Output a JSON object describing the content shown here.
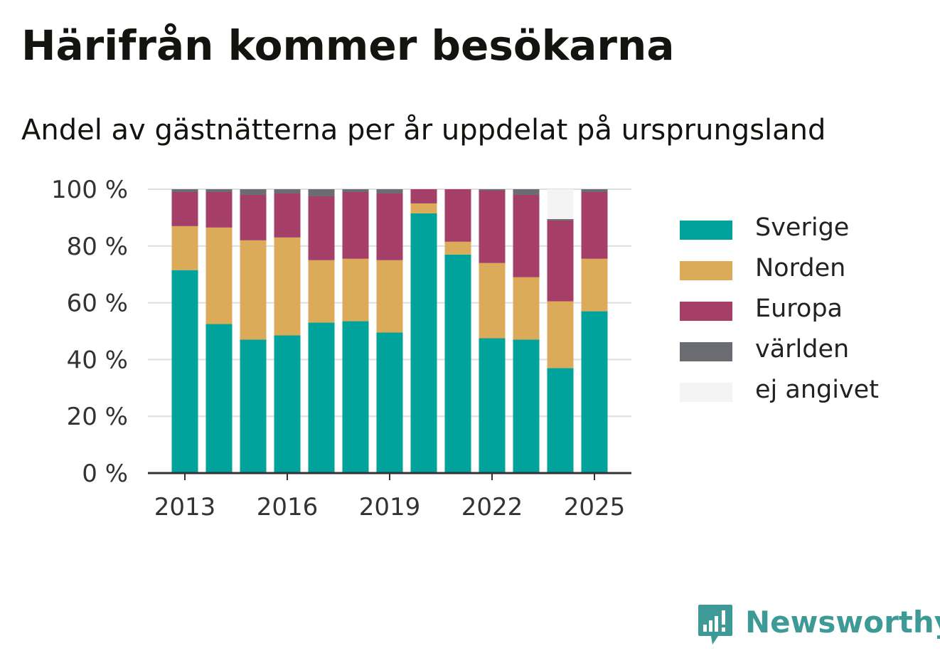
{
  "header": {
    "title": "Härifrån kommer besökarna",
    "subtitle": "Andel av gästnätterna per år uppdelat på ursprungsland"
  },
  "brand": {
    "name": "Newsworthy",
    "icon": "newsworthy-logo-icon",
    "color": "#3d9a96"
  },
  "legend": {
    "placement": "right",
    "items": [
      {
        "label": "Sverige",
        "color": "#00a39b"
      },
      {
        "label": "Norden",
        "color": "#dcab59"
      },
      {
        "label": "Europa",
        "color": "#a53f67"
      },
      {
        "label": "världen",
        "color": "#6b6b72"
      },
      {
        "label": "ej angivet",
        "color": "#f4f4f4"
      }
    ]
  },
  "chart_data": {
    "type": "bar",
    "stacked": true,
    "x": [
      2013,
      2014,
      2015,
      2016,
      2017,
      2018,
      2019,
      2020,
      2021,
      2022,
      2023,
      2024,
      2025
    ],
    "x_tick_labels": [
      "2013",
      "2016",
      "2019",
      "2022",
      "2025"
    ],
    "y_tick_labels": [
      "0 %",
      "20 %",
      "40 %",
      "60 %",
      "80 %",
      "100 %"
    ],
    "ylim": [
      0,
      100
    ],
    "grid": true,
    "series": [
      {
        "name": "Sverige",
        "color": "#00a39b",
        "values": [
          71.5,
          52.5,
          47,
          48.5,
          53,
          53.5,
          49.5,
          91.5,
          77,
          47.5,
          47,
          37,
          57
        ]
      },
      {
        "name": "Norden",
        "color": "#dcab59",
        "values": [
          15.5,
          34,
          35,
          34.5,
          22,
          22,
          25.5,
          3.5,
          4.5,
          26.5,
          22,
          23.5,
          18.5
        ]
      },
      {
        "name": "Europa",
        "color": "#a53f67",
        "values": [
          12,
          12.5,
          16,
          15.5,
          22.5,
          23.5,
          23.5,
          5,
          18.5,
          25.5,
          29,
          28.5,
          23.5
        ]
      },
      {
        "name": "världen",
        "color": "#6b6b72",
        "values": [
          1,
          1,
          2,
          1.5,
          2.5,
          1,
          1.5,
          0,
          0,
          0.5,
          2,
          0.5,
          1
        ]
      },
      {
        "name": "ej angivet",
        "color": "#f4f4f4",
        "values": [
          0,
          0,
          0,
          0,
          0,
          0,
          0,
          0,
          0,
          0,
          0,
          10.5,
          0
        ]
      }
    ]
  }
}
